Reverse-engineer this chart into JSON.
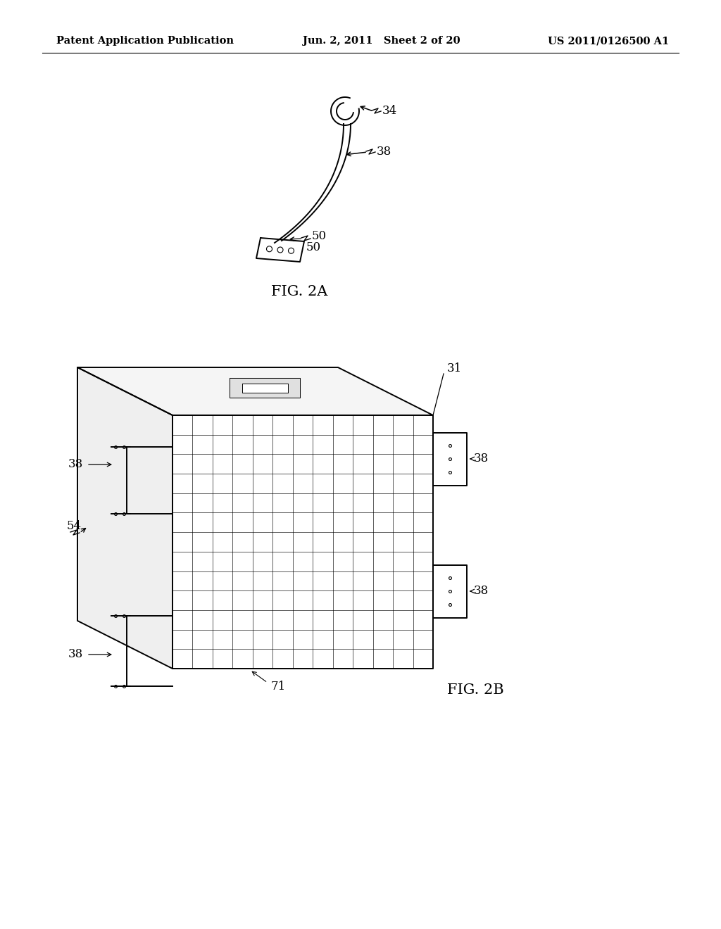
{
  "background_color": "#ffffff",
  "header_left": "Patent Application Publication",
  "header_center": "Jun. 2, 2011   Sheet 2 of 20",
  "header_right": "US 2011/0126500 A1",
  "header_fontsize": 10.5,
  "fig2a_label": "FIG. 2A",
  "fig2b_label": "FIG. 2B",
  "lc": "#000000",
  "lw": 1.4,
  "tlw": 0.7,
  "fs": 12
}
